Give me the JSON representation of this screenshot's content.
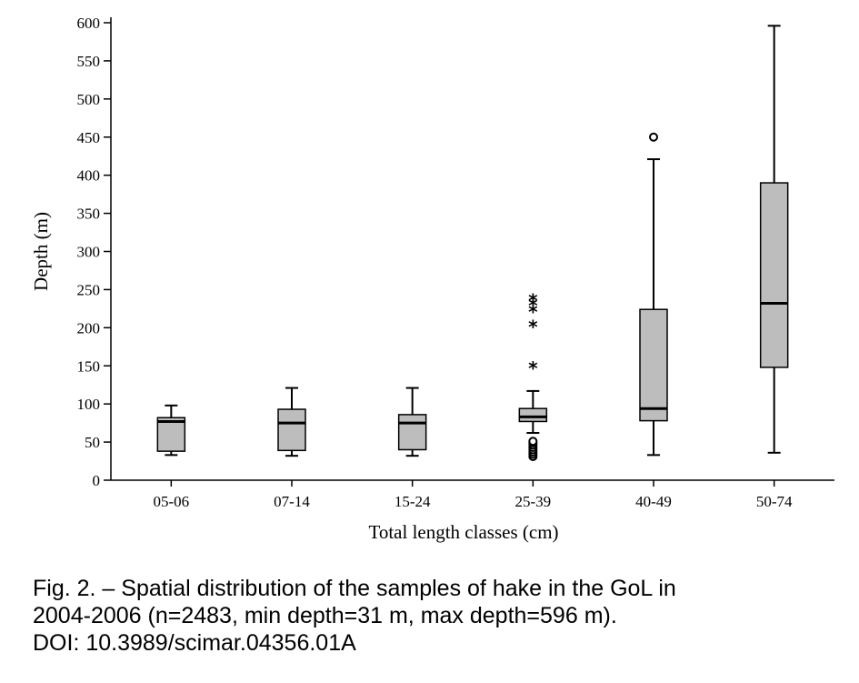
{
  "chart_data": {
    "type": "box",
    "xlabel": "Total length classes (cm)",
    "ylabel": "Depth (m)",
    "ylim": [
      0,
      600
    ],
    "yticks": [
      0,
      50,
      100,
      150,
      200,
      250,
      300,
      350,
      400,
      450,
      500,
      550,
      600
    ],
    "categories": [
      "05-06",
      "07-14",
      "15-24",
      "25-39",
      "40-49",
      "50-74"
    ],
    "boxes": [
      {
        "category": "05-06",
        "whisker_low": 33,
        "q1": 38,
        "median": 77,
        "q3": 82,
        "whisker_high": 98,
        "outliers": [],
        "extremes": []
      },
      {
        "category": "07-14",
        "whisker_low": 32,
        "q1": 39,
        "median": 75,
        "q3": 93,
        "whisker_high": 121,
        "outliers": [],
        "extremes": []
      },
      {
        "category": "15-24",
        "whisker_low": 32,
        "q1": 40,
        "median": 75,
        "q3": 86,
        "whisker_high": 121,
        "outliers": [],
        "extremes": []
      },
      {
        "category": "25-39",
        "whisker_low": 62,
        "q1": 77,
        "median": 83,
        "q3": 94,
        "whisker_high": 117,
        "outliers": [
          31,
          34,
          37,
          40,
          43,
          46,
          49,
          51
        ],
        "extremes": [
          148,
          202,
          222,
          230,
          237
        ]
      },
      {
        "category": "40-49",
        "whisker_low": 33,
        "q1": 78,
        "median": 94,
        "q3": 224,
        "whisker_high": 421,
        "outliers": [
          450
        ],
        "extremes": []
      },
      {
        "category": "50-74",
        "whisker_low": 36,
        "q1": 148,
        "median": 232,
        "q3": 390,
        "whisker_high": 596,
        "outliers": [],
        "extremes": []
      }
    ],
    "colors": {
      "box_fill": "#bdbdbd",
      "line": "#000000"
    },
    "grid": false
  },
  "caption": {
    "line1": "Fig. 2. – Spatial distribution of the samples of hake in the GoL in",
    "line2": "2004-2006 (n=2483, min depth=31 m, max depth=596 m).",
    "line3": "DOI: 10.3989/scimar.04356.01A"
  }
}
